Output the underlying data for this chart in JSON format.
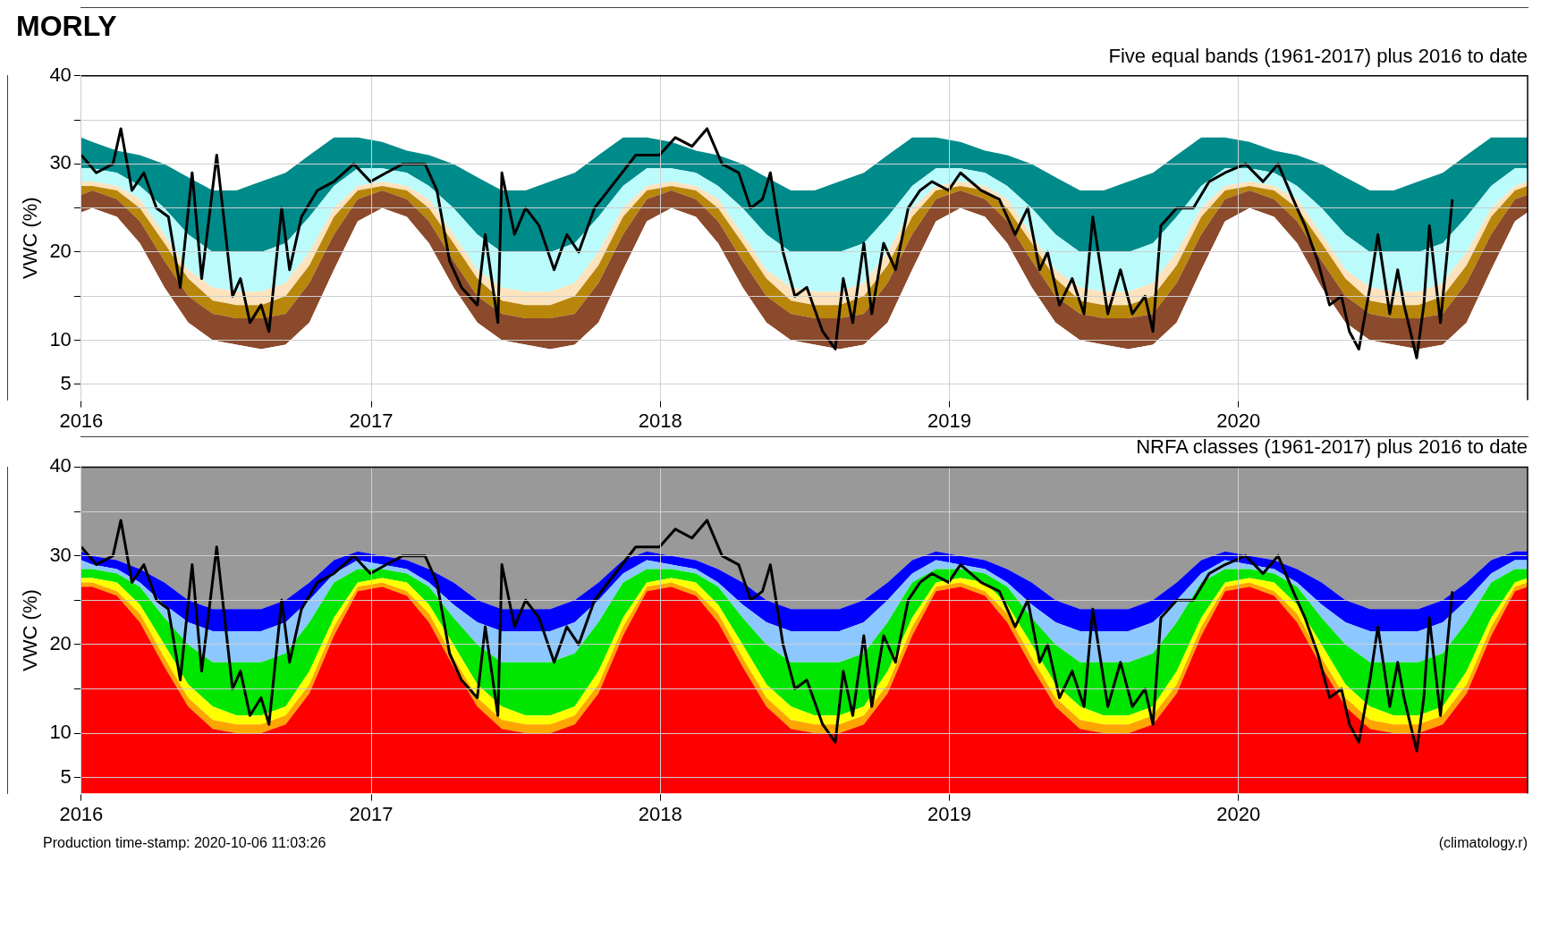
{
  "chart_data": [
    {
      "type": "area",
      "title": "MORLY",
      "subtitle": "Five equal bands (1961-2017) plus 2016 to date",
      "ylabel": "VWC (%)",
      "xlim": [
        "2016-01-01",
        "2020-12-31"
      ],
      "xticks": [
        {
          "value": "2016-01-01",
          "label": "2016"
        },
        {
          "value": "2017-01-01",
          "label": "2017"
        },
        {
          "value": "2018-01-01",
          "label": "2018"
        },
        {
          "value": "2019-01-01",
          "label": "2019"
        },
        {
          "value": "2020-01-01",
          "label": "2020"
        }
      ],
      "ylim": [
        3.2,
        40
      ],
      "yticks": [
        5,
        10,
        {
          "value": 15,
          "label": null
        },
        20,
        {
          "value": 25,
          "label": null
        },
        30,
        {
          "value": 35,
          "label": null
        },
        40
      ],
      "grid": true,
      "x": [
        "2016-01-01",
        "2016-01-15",
        "2016-02-15",
        "2016-03-15",
        "2016-04-15",
        "2016-05-15",
        "2016-06-15",
        "2016-07-15",
        "2016-08-15",
        "2016-09-15",
        "2016-10-15",
        "2016-11-15",
        "2016-12-15",
        "2017-01-15",
        "2017-02-15",
        "2017-03-15",
        "2017-04-15",
        "2017-05-15",
        "2017-06-15",
        "2017-07-15",
        "2017-08-15",
        "2017-09-15",
        "2017-10-15",
        "2017-11-15",
        "2017-12-15",
        "2018-01-15",
        "2018-02-15",
        "2018-03-15",
        "2018-04-15",
        "2018-05-15",
        "2018-06-15",
        "2018-07-15",
        "2018-08-15",
        "2018-09-15",
        "2018-10-15",
        "2018-11-15",
        "2018-12-15",
        "2019-01-15",
        "2019-02-15",
        "2019-03-15",
        "2019-04-15",
        "2019-05-15",
        "2019-06-15",
        "2019-07-15",
        "2019-08-15",
        "2019-09-15",
        "2019-10-15",
        "2019-11-15",
        "2019-12-15",
        "2020-01-15",
        "2020-02-15",
        "2020-03-15",
        "2020-04-15",
        "2020-05-15",
        "2020-06-15",
        "2020-07-15",
        "2020-08-15",
        "2020-09-15",
        "2020-10-15",
        "2020-11-15",
        "2020-12-15",
        "2020-12-31"
      ],
      "series": [
        {
          "color": "#ffffff",
          "values": [
            24.5,
            25,
            24,
            21,
            16,
            12,
            10,
            9.5,
            9,
            9.5,
            12,
            18,
            23.5,
            25,
            24,
            21,
            16,
            12,
            10,
            9.5,
            9,
            9.5,
            12,
            18,
            23.5,
            25,
            24,
            21,
            16,
            12,
            10,
            9.5,
            9,
            9.5,
            12,
            18,
            23.5,
            25,
            24,
            21,
            16,
            12,
            10,
            9.5,
            9,
            9.5,
            12,
            18,
            23.5,
            25,
            24,
            21,
            16,
            12,
            10,
            9.5,
            9,
            9.5,
            12,
            18,
            23.5,
            24.5
          ]
        },
        {
          "color": "#8b4a2b",
          "values": [
            26.5,
            27,
            26,
            23.5,
            19,
            15,
            13,
            12.5,
            12.5,
            13,
            16.5,
            22,
            26,
            27,
            26,
            23.5,
            19,
            15,
            13,
            12.5,
            12.5,
            13,
            16.5,
            22,
            26,
            27,
            26,
            23.5,
            19,
            15,
            13,
            12.5,
            12.5,
            13,
            16.5,
            22,
            26,
            27,
            26,
            23.5,
            19,
            15,
            13,
            12.5,
            12.5,
            13,
            16.5,
            22,
            26,
            27,
            26,
            23.5,
            19,
            15,
            13,
            12.5,
            12.5,
            13,
            16.5,
            22,
            26,
            26.5
          ]
        },
        {
          "color": "#b8860b",
          "values": [
            27.5,
            27.5,
            27,
            25,
            21,
            17,
            14.5,
            14,
            14,
            15,
            18.5,
            24,
            27,
            27.5,
            27,
            25,
            21,
            17,
            14.5,
            14,
            14,
            15,
            18.5,
            24,
            27,
            27.5,
            27,
            25,
            21,
            17,
            14.5,
            14,
            14,
            15,
            18.5,
            24,
            27,
            27.5,
            27,
            25,
            21,
            17,
            14.5,
            14,
            14,
            15,
            18.5,
            24,
            27,
            27.5,
            27,
            25,
            21,
            17,
            14.5,
            14,
            14,
            15,
            18.5,
            24,
            27,
            27.5
          ]
        },
        {
          "color": "#fde3bd",
          "values": [
            28,
            28,
            27.5,
            26,
            22,
            18,
            16,
            15.5,
            15.5,
            16.5,
            20,
            25,
            27.5,
            28,
            27.5,
            26,
            22,
            18,
            16,
            15.5,
            15.5,
            16.5,
            20,
            25,
            27.5,
            28,
            27.5,
            26,
            22,
            18,
            16,
            15.5,
            15.5,
            16.5,
            20,
            25,
            27.5,
            28,
            27.5,
            26,
            22,
            18,
            16,
            15.5,
            15.5,
            16.5,
            20,
            25,
            27.5,
            28,
            27.5,
            26,
            22,
            18,
            16,
            15.5,
            15.5,
            16.5,
            20,
            25,
            27.5,
            28
          ]
        },
        {
          "color": "#bbfbfb",
          "values": [
            29.5,
            29.5,
            29,
            27.5,
            25,
            22,
            20,
            20,
            20,
            21,
            24,
            27.5,
            29.5,
            29.5,
            29,
            27.5,
            25,
            22,
            20,
            20,
            20,
            21,
            24,
            27.5,
            29.5,
            29.5,
            29,
            27.5,
            25,
            22,
            20,
            20,
            20,
            21,
            24,
            27.5,
            29.5,
            29.5,
            29,
            27.5,
            25,
            22,
            20,
            20,
            20,
            21,
            24,
            27.5,
            29.5,
            29.5,
            29,
            27.5,
            25,
            22,
            20,
            20,
            20,
            21,
            24,
            27.5,
            29.5,
            29.5
          ]
        },
        {
          "color": "#008b8b",
          "values": [
            33,
            32.5,
            31.5,
            31,
            30,
            28.5,
            27,
            27,
            28,
            29,
            31,
            33,
            33,
            32.5,
            31.5,
            31,
            30,
            28.5,
            27,
            27,
            28,
            29,
            31,
            33,
            33,
            32.5,
            31.5,
            31,
            30,
            28.5,
            27,
            27,
            28,
            29,
            31,
            33,
            33,
            32.5,
            31.5,
            31,
            30,
            28.5,
            27,
            27,
            28,
            29,
            31,
            33,
            33,
            32.5,
            31.5,
            31,
            30,
            28.5,
            27,
            27,
            28,
            29,
            31,
            33,
            33,
            33
          ]
        },
        {
          "type": "line",
          "color": "#000000",
          "x": [
            "2016-01-01",
            "2016-01-20",
            "2016-02-10",
            "2016-02-20",
            "2016-03-05",
            "2016-03-20",
            "2016-04-05",
            "2016-04-20",
            "2016-05-05",
            "2016-05-20",
            "2016-06-01",
            "2016-06-20",
            "2016-07-10",
            "2016-07-20",
            "2016-08-01",
            "2016-08-15",
            "2016-08-25",
            "2016-09-10",
            "2016-09-20",
            "2016-10-05",
            "2016-10-25",
            "2016-11-15",
            "2016-12-10",
            "2016-12-31",
            "2017-01-20",
            "2017-02-10",
            "2017-03-10",
            "2017-03-25",
            "2017-04-10",
            "2017-04-25",
            "2017-05-15",
            "2017-05-25",
            "2017-06-10",
            "2017-06-15",
            "2017-07-01",
            "2017-07-15",
            "2017-08-01",
            "2017-08-20",
            "2017-09-05",
            "2017-09-20",
            "2017-10-10",
            "2017-11-05",
            "2017-12-01",
            "2017-12-31",
            "2018-01-20",
            "2018-02-10",
            "2018-03-01",
            "2018-03-20",
            "2018-04-10",
            "2018-04-25",
            "2018-05-10",
            "2018-05-20",
            "2018-06-05",
            "2018-06-20",
            "2018-07-05",
            "2018-07-25",
            "2018-08-10",
            "2018-08-20",
            "2018-09-01",
            "2018-09-15",
            "2018-09-25",
            "2018-10-10",
            "2018-10-25",
            "2018-11-10",
            "2018-11-25",
            "2018-12-10",
            "2018-12-31",
            "2019-01-15",
            "2019-02-10",
            "2019-03-05",
            "2019-03-25",
            "2019-04-10",
            "2019-04-25",
            "2019-05-05",
            "2019-05-20",
            "2019-06-05",
            "2019-06-20",
            "2019-07-01",
            "2019-07-20",
            "2019-08-05",
            "2019-08-20",
            "2019-09-05",
            "2019-09-15",
            "2019-09-25",
            "2019-10-15",
            "2019-11-05",
            "2019-11-25",
            "2019-12-15",
            "2020-01-10",
            "2020-02-01",
            "2020-02-20",
            "2020-03-10",
            "2020-03-25",
            "2020-04-10",
            "2020-04-25",
            "2020-05-10",
            "2020-05-20",
            "2020-06-01",
            "2020-06-15",
            "2020-06-25",
            "2020-07-10",
            "2020-07-20",
            "2020-07-28",
            "2020-08-05",
            "2020-08-13",
            "2020-08-22",
            "2020-08-29",
            "2020-09-12",
            "2020-09-27"
          ],
          "values": [
            31,
            29,
            30,
            34,
            27,
            29,
            25,
            24,
            16,
            29,
            17,
            31,
            15,
            17,
            12,
            14,
            11,
            25,
            18,
            24,
            27,
            28,
            30,
            28,
            29,
            30,
            30,
            27,
            19,
            16,
            14,
            22,
            12,
            29,
            22,
            25,
            23,
            18,
            22,
            20,
            25,
            28,
            31,
            31,
            33,
            32,
            34,
            30,
            29,
            25,
            26,
            29,
            20,
            15,
            16,
            11,
            9,
            17,
            12,
            21,
            13,
            21,
            18,
            25,
            27,
            28,
            27,
            29,
            27,
            26,
            22,
            25,
            18,
            20,
            14,
            17,
            13,
            24,
            13,
            18,
            13,
            15,
            11,
            23,
            25,
            25,
            28,
            29,
            30,
            28,
            30,
            26,
            23,
            19,
            14,
            15,
            11,
            9,
            16,
            22,
            13,
            18,
            14,
            11,
            8,
            14,
            23,
            12,
            26
          ]
        }
      ]
    },
    {
      "type": "area",
      "subtitle": "NRFA classes (1961-2017) plus 2016 to date",
      "ylabel": "VWC (%)",
      "xlim": [
        "2016-01-01",
        "2020-12-31"
      ],
      "xticks": [
        {
          "value": "2016-01-01",
          "label": "2016"
        },
        {
          "value": "2017-01-01",
          "label": "2017"
        },
        {
          "value": "2018-01-01",
          "label": "2018"
        },
        {
          "value": "2019-01-01",
          "label": "2019"
        },
        {
          "value": "2020-01-01",
          "label": "2020"
        }
      ],
      "ylim": [
        3.2,
        40
      ],
      "yticks": [
        5,
        10,
        {
          "value": 15,
          "label": null
        },
        20,
        {
          "value": 25,
          "label": null
        },
        30,
        {
          "value": 35,
          "label": null
        },
        40
      ],
      "grid": true,
      "annotations": [
        "Production time-stamp: 2020-10-06 11:03:26",
        "(climatology.r)"
      ],
      "x": [
        "2016-01-01",
        "2016-01-15",
        "2016-02-15",
        "2016-03-15",
        "2016-04-15",
        "2016-05-15",
        "2016-06-15",
        "2016-07-15",
        "2016-08-15",
        "2016-09-15",
        "2016-10-15",
        "2016-11-15",
        "2016-12-15",
        "2017-01-15",
        "2017-02-15",
        "2017-03-15",
        "2017-04-15",
        "2017-05-15",
        "2017-06-15",
        "2017-07-15",
        "2017-08-15",
        "2017-09-15",
        "2017-10-15",
        "2017-11-15",
        "2017-12-15",
        "2018-01-15",
        "2018-02-15",
        "2018-03-15",
        "2018-04-15",
        "2018-05-15",
        "2018-06-15",
        "2018-07-15",
        "2018-08-15",
        "2018-09-15",
        "2018-10-15",
        "2018-11-15",
        "2018-12-15",
        "2019-01-15",
        "2019-02-15",
        "2019-03-15",
        "2019-04-15",
        "2019-05-15",
        "2019-06-15",
        "2019-07-15",
        "2019-08-15",
        "2019-09-15",
        "2019-10-15",
        "2019-11-15",
        "2019-12-15",
        "2020-01-15",
        "2020-02-15",
        "2020-03-15",
        "2020-04-15",
        "2020-05-15",
        "2020-06-15",
        "2020-07-15",
        "2020-08-15",
        "2020-09-15",
        "2020-10-15",
        "2020-11-15",
        "2020-12-15",
        "2020-12-31"
      ],
      "series": [
        {
          "color": "#ff0000",
          "values": [
            26.5,
            26.5,
            25.5,
            22.5,
            17.5,
            13,
            10.5,
            10,
            10,
            11,
            14.5,
            21,
            26,
            26.5,
            25.5,
            22.5,
            17.5,
            13,
            10.5,
            10,
            10,
            11,
            14.5,
            21,
            26,
            26.5,
            25.5,
            22.5,
            17.5,
            13,
            10.5,
            10,
            10,
            11,
            14.5,
            21,
            26,
            26.5,
            25.5,
            22.5,
            17.5,
            13,
            10.5,
            10,
            10,
            11,
            14.5,
            21,
            26,
            26.5,
            25.5,
            22.5,
            17.5,
            13,
            10.5,
            10,
            10,
            11,
            14.5,
            21,
            26,
            26.5
          ]
        },
        {
          "color": "#ffa500",
          "values": [
            27,
            27,
            26,
            23.5,
            18.5,
            14,
            11.5,
            11,
            11,
            12,
            15.5,
            22,
            26.5,
            27,
            26,
            23.5,
            18.5,
            14,
            11.5,
            11,
            11,
            12,
            15.5,
            22,
            26.5,
            27,
            26,
            23.5,
            18.5,
            14,
            11.5,
            11,
            11,
            12,
            15.5,
            22,
            26.5,
            27,
            26,
            23.5,
            18.5,
            14,
            11.5,
            11,
            11,
            12,
            15.5,
            22,
            26.5,
            27,
            26,
            23.5,
            18.5,
            14,
            11.5,
            11,
            11,
            12,
            15.5,
            22,
            26.5,
            27
          ]
        },
        {
          "color": "#ffff00",
          "values": [
            27.5,
            27.5,
            27,
            24.5,
            20,
            15.5,
            13,
            12,
            12,
            13,
            17,
            23,
            27,
            27.5,
            27,
            24.5,
            20,
            15.5,
            13,
            12,
            12,
            13,
            17,
            23,
            27,
            27.5,
            27,
            24.5,
            20,
            15.5,
            13,
            12,
            12,
            13,
            17,
            23,
            27,
            27.5,
            27,
            24.5,
            20,
            15.5,
            13,
            12,
            12,
            13,
            17,
            23,
            27,
            27.5,
            27,
            24.5,
            20,
            15.5,
            13,
            12,
            12,
            13,
            17,
            23,
            27,
            27.5
          ]
        },
        {
          "color": "#00e600",
          "values": [
            28.5,
            28.5,
            28,
            26.5,
            23,
            20,
            18,
            18,
            18,
            19,
            22.5,
            27,
            28.5,
            28.5,
            28,
            26.5,
            23,
            20,
            18,
            18,
            18,
            19,
            22.5,
            27,
            28.5,
            28.5,
            28,
            26.5,
            23,
            20,
            18,
            18,
            18,
            19,
            22.5,
            27,
            28.5,
            28.5,
            28,
            26.5,
            23,
            20,
            18,
            18,
            18,
            19,
            22.5,
            27,
            28.5,
            28.5,
            28,
            26.5,
            23,
            20,
            18,
            18,
            18,
            19,
            22.5,
            27,
            28.5,
            28.5
          ]
        },
        {
          "color": "#8cc8ff",
          "values": [
            29.5,
            29,
            28.5,
            27,
            24.5,
            22.5,
            21.5,
            21.5,
            21.5,
            22.5,
            25,
            28,
            29.5,
            29,
            28.5,
            27,
            24.5,
            22.5,
            21.5,
            21.5,
            21.5,
            22.5,
            25,
            28,
            29.5,
            29,
            28.5,
            27,
            24.5,
            22.5,
            21.5,
            21.5,
            21.5,
            22.5,
            25,
            28,
            29.5,
            29,
            28.5,
            27,
            24.5,
            22.5,
            21.5,
            21.5,
            21.5,
            22.5,
            25,
            28,
            29.5,
            29,
            28.5,
            27,
            24.5,
            22.5,
            21.5,
            21.5,
            21.5,
            22.5,
            25,
            28,
            29.5,
            29.5
          ]
        },
        {
          "color": "#0000ff",
          "values": [
            30.5,
            30,
            29.5,
            28.5,
            27,
            25,
            24,
            24,
            24,
            25,
            27,
            29.5,
            30.5,
            30,
            29.5,
            28.5,
            27,
            25,
            24,
            24,
            24,
            25,
            27,
            29.5,
            30.5,
            30,
            29.5,
            28.5,
            27,
            25,
            24,
            24,
            24,
            25,
            27,
            29.5,
            30.5,
            30,
            29.5,
            28.5,
            27,
            25,
            24,
            24,
            24,
            25,
            27,
            29.5,
            30.5,
            30,
            29.5,
            28.5,
            27,
            25,
            24,
            24,
            24,
            25,
            27,
            29.5,
            30.5,
            30.5
          ]
        },
        {
          "color": "#999999",
          "values": [
            40,
            40,
            40,
            40,
            40,
            40,
            40,
            40,
            40,
            40,
            40,
            40,
            40,
            40,
            40,
            40,
            40,
            40,
            40,
            40,
            40,
            40,
            40,
            40,
            40,
            40,
            40,
            40,
            40,
            40,
            40,
            40,
            40,
            40,
            40,
            40,
            40,
            40,
            40,
            40,
            40,
            40,
            40,
            40,
            40,
            40,
            40,
            40,
            40,
            40,
            40,
            40,
            40,
            40,
            40,
            40,
            40,
            40,
            40,
            40,
            40,
            40
          ]
        },
        {
          "type": "line",
          "color": "#000000",
          "x": [
            "2016-01-01",
            "2016-01-20",
            "2016-02-10",
            "2016-02-20",
            "2016-03-05",
            "2016-03-20",
            "2016-04-05",
            "2016-04-20",
            "2016-05-05",
            "2016-05-20",
            "2016-06-01",
            "2016-06-20",
            "2016-07-10",
            "2016-07-20",
            "2016-08-01",
            "2016-08-15",
            "2016-08-25",
            "2016-09-10",
            "2016-09-20",
            "2016-10-05",
            "2016-10-25",
            "2016-11-15",
            "2016-12-10",
            "2016-12-31",
            "2017-01-20",
            "2017-02-10",
            "2017-03-10",
            "2017-03-25",
            "2017-04-10",
            "2017-04-25",
            "2017-05-15",
            "2017-05-25",
            "2017-06-10",
            "2017-06-15",
            "2017-07-01",
            "2017-07-15",
            "2017-08-01",
            "2017-08-20",
            "2017-09-05",
            "2017-09-20",
            "2017-10-10",
            "2017-11-05",
            "2017-12-01",
            "2017-12-31",
            "2018-01-20",
            "2018-02-10",
            "2018-03-01",
            "2018-03-20",
            "2018-04-10",
            "2018-04-25",
            "2018-05-10",
            "2018-05-20",
            "2018-06-05",
            "2018-06-20",
            "2018-07-05",
            "2018-07-25",
            "2018-08-10",
            "2018-08-20",
            "2018-09-01",
            "2018-09-15",
            "2018-09-25",
            "2018-10-10",
            "2018-10-25",
            "2018-11-10",
            "2018-11-25",
            "2018-12-10",
            "2018-12-31",
            "2019-01-15",
            "2019-02-10",
            "2019-03-05",
            "2019-03-25",
            "2019-04-10",
            "2019-04-25",
            "2019-05-05",
            "2019-05-20",
            "2019-06-05",
            "2019-06-20",
            "2019-07-01",
            "2019-07-20",
            "2019-08-05",
            "2019-08-20",
            "2019-09-05",
            "2019-09-15",
            "2019-09-25",
            "2019-10-15",
            "2019-11-05",
            "2019-11-25",
            "2019-12-15",
            "2020-01-10",
            "2020-02-01",
            "2020-02-20",
            "2020-03-10",
            "2020-03-25",
            "2020-04-10",
            "2020-04-25",
            "2020-05-10",
            "2020-05-20",
            "2020-06-01",
            "2020-06-15",
            "2020-06-25",
            "2020-07-10",
            "2020-07-20",
            "2020-07-28",
            "2020-08-05",
            "2020-08-13",
            "2020-08-22",
            "2020-08-29",
            "2020-09-12",
            "2020-09-27"
          ],
          "values": [
            31,
            29,
            30,
            34,
            27,
            29,
            25,
            24,
            16,
            29,
            17,
            31,
            15,
            17,
            12,
            14,
            11,
            25,
            18,
            24,
            27,
            28,
            30,
            28,
            29,
            30,
            30,
            27,
            19,
            16,
            14,
            22,
            12,
            29,
            22,
            25,
            23,
            18,
            22,
            20,
            25,
            28,
            31,
            31,
            33,
            32,
            34,
            30,
            29,
            25,
            26,
            29,
            20,
            15,
            16,
            11,
            9,
            17,
            12,
            21,
            13,
            21,
            18,
            25,
            27,
            28,
            27,
            29,
            27,
            26,
            22,
            25,
            18,
            20,
            14,
            17,
            13,
            24,
            13,
            18,
            13,
            15,
            11,
            23,
            25,
            25,
            28,
            29,
            30,
            28,
            30,
            26,
            23,
            19,
            14,
            15,
            11,
            9,
            16,
            22,
            13,
            18,
            14,
            11,
            8,
            14,
            23,
            12,
            26
          ]
        }
      ]
    }
  ]
}
